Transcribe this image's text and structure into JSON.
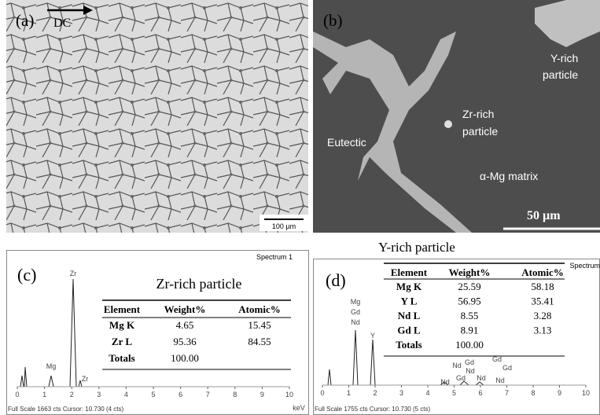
{
  "panel_a": {
    "label": "(a)",
    "direction": "DC",
    "scale_bar": "100 µm"
  },
  "panel_b": {
    "label": "(b)",
    "annotations": [
      [
        "Y-rich",
        "particle"
      ],
      [
        "Zr-rich",
        "particle"
      ],
      [
        "Eutectic"
      ],
      [
        "α-Mg matrix"
      ]
    ],
    "scale_bar": "50 µm"
  },
  "panel_c": {
    "label": "(c)",
    "spectrum": "Spectrum 1",
    "title": "Zr-rich particle",
    "table": {
      "header": [
        "Element",
        "Weight%",
        "Atomic%"
      ],
      "rows": [
        [
          "Mg K",
          "4.65",
          "15.45"
        ],
        [
          "Zr L",
          "95.36",
          "84.55"
        ],
        [
          "Totals",
          "100.00"
        ]
      ]
    },
    "peak_labels": [
      "Zr",
      "Mg",
      "Zr"
    ],
    "xticks": [
      0,
      1,
      2,
      3,
      4,
      5,
      6,
      7,
      8,
      9,
      10
    ],
    "x_unit": "keV",
    "footer": "Full Scale 1663 cts Cursor: 10.730 (4 cts)"
  },
  "panel_d": {
    "label": "(d)",
    "spectrum": "Spectrum",
    "title": "Y-rich particle",
    "table": {
      "header": [
        "Element",
        "Weight%",
        "Atomic%"
      ],
      "rows": [
        [
          "Mg K",
          "25.59",
          "58.18"
        ],
        [
          "Y L",
          "56.95",
          "35.41"
        ],
        [
          "Nd L",
          "8.55",
          "3.28"
        ],
        [
          "Gd L",
          "8.91",
          "3.13"
        ],
        [
          "Totals",
          "100.00"
        ]
      ]
    },
    "peak_labels": [
      "Mg",
      "Gd",
      "Nd",
      "Y",
      "Nd",
      "Nd",
      "Gd",
      "Gd",
      "Nd",
      "Nd",
      "Gd",
      "Gd",
      "Nd"
    ],
    "xticks": [
      0,
      1,
      2,
      3,
      4,
      5,
      6,
      7,
      8,
      9,
      10
    ],
    "footer": "Full Scale 1755 cts Cursor: 10.730 (5 cts)"
  }
}
